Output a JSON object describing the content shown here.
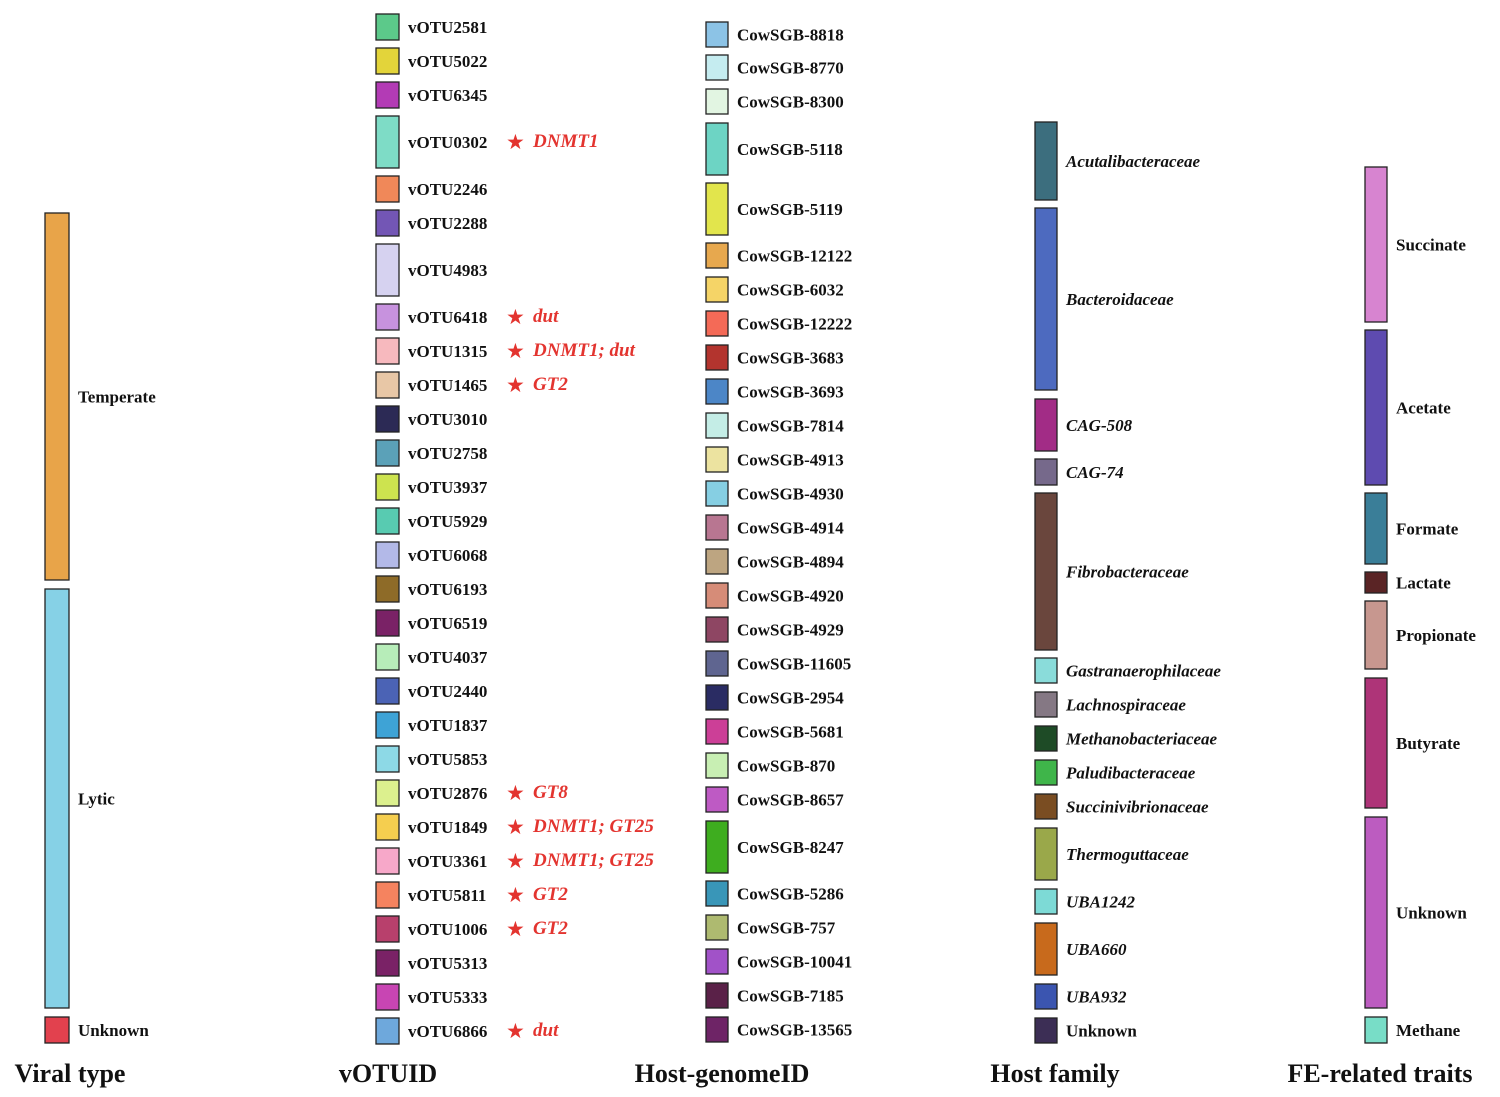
{
  "columns": [
    "Viral type",
    "vOTUID",
    "Host-genomeID",
    "Host family",
    "FE-related traits"
  ],
  "nodes": {
    "viral_type": [
      {
        "id": "Temperate",
        "color": "#E8A449"
      },
      {
        "id": "Lytic",
        "color": "#86D1E6"
      },
      {
        "id": "Unknown",
        "color": "#E2414E"
      }
    ],
    "votu": [
      {
        "id": "vOTU2581",
        "color": "#5CC98A"
      },
      {
        "id": "vOTU5022",
        "color": "#E3D43A"
      },
      {
        "id": "vOTU6345",
        "color": "#B33BB5"
      },
      {
        "id": "vOTU0302",
        "color": "#7EDCC6",
        "genes": "DNMT1"
      },
      {
        "id": "vOTU2246",
        "color": "#F08859"
      },
      {
        "id": "vOTU2288",
        "color": "#7356B5"
      },
      {
        "id": "vOTU4983",
        "color": "#D6D2F0"
      },
      {
        "id": "vOTU6418",
        "color": "#C792DE",
        "genes": "dut"
      },
      {
        "id": "vOTU1315",
        "color": "#F7B9BE",
        "genes": "DNMT1; dut"
      },
      {
        "id": "vOTU1465",
        "color": "#E8C7A6",
        "genes": "GT2"
      },
      {
        "id": "vOTU3010",
        "color": "#2C2A55"
      },
      {
        "id": "vOTU2758",
        "color": "#5BA1B8"
      },
      {
        "id": "vOTU3937",
        "color": "#CDE34F"
      },
      {
        "id": "vOTU5929",
        "color": "#58CBB1"
      },
      {
        "id": "vOTU6068",
        "color": "#B3B9E8"
      },
      {
        "id": "vOTU6193",
        "color": "#8E6B28"
      },
      {
        "id": "vOTU6519",
        "color": "#7A2266"
      },
      {
        "id": "vOTU4037",
        "color": "#B7EDB9"
      },
      {
        "id": "vOTU2440",
        "color": "#4B63B5"
      },
      {
        "id": "vOTU1837",
        "color": "#3EA3D6"
      },
      {
        "id": "vOTU5853",
        "color": "#8DD9E6"
      },
      {
        "id": "vOTU2876",
        "color": "#DCF08E",
        "genes": "GT8"
      },
      {
        "id": "vOTU1849",
        "color": "#F5CE4F",
        "genes": "DNMT1; GT25"
      },
      {
        "id": "vOTU3361",
        "color": "#F7A8C9",
        "genes": "DNMT1; GT25"
      },
      {
        "id": "vOTU5811",
        "color": "#F5835F",
        "genes": "GT2"
      },
      {
        "id": "vOTU1006",
        "color": "#B8406C",
        "genes": "GT2"
      },
      {
        "id": "vOTU5313",
        "color": "#7A2266"
      },
      {
        "id": "vOTU5333",
        "color": "#C845B3"
      },
      {
        "id": "vOTU6866",
        "color": "#6EA8DC",
        "genes": "dut"
      }
    ],
    "host_genome": [
      {
        "id": "CowSGB-8818",
        "color": "#8CC3E6"
      },
      {
        "id": "CowSGB-8770",
        "color": "#C5ECF0"
      },
      {
        "id": "CowSGB-8300",
        "color": "#E2F5E2"
      },
      {
        "id": "CowSGB-5118",
        "color": "#6DD4C4"
      },
      {
        "id": "CowSGB-5119",
        "color": "#E2E54C"
      },
      {
        "id": "CowSGB-12122",
        "color": "#E7A84E"
      },
      {
        "id": "CowSGB-6032",
        "color": "#F5D467"
      },
      {
        "id": "CowSGB-12222",
        "color": "#F46A57"
      },
      {
        "id": "CowSGB-3683",
        "color": "#B3342E"
      },
      {
        "id": "CowSGB-3693",
        "color": "#4C86C7"
      },
      {
        "id": "CowSGB-7814",
        "color": "#C4EDE6"
      },
      {
        "id": "CowSGB-4913",
        "color": "#ECE3A0"
      },
      {
        "id": "CowSGB-4930",
        "color": "#86CFE3"
      },
      {
        "id": "CowSGB-4914",
        "color": "#B87691"
      },
      {
        "id": "CowSGB-4894",
        "color": "#BDA581"
      },
      {
        "id": "CowSGB-4920",
        "color": "#D68C78"
      },
      {
        "id": "CowSGB-4929",
        "color": "#8E4663"
      },
      {
        "id": "CowSGB-11605",
        "color": "#5F6590"
      },
      {
        "id": "CowSGB-2954",
        "color": "#2A2C63"
      },
      {
        "id": "CowSGB-5681",
        "color": "#CC3F97"
      },
      {
        "id": "CowSGB-870",
        "color": "#C8EFB3"
      },
      {
        "id": "CowSGB-8657",
        "color": "#BE5AC4"
      },
      {
        "id": "CowSGB-8247",
        "color": "#3EAD1F"
      },
      {
        "id": "CowSGB-5286",
        "color": "#3996B8"
      },
      {
        "id": "CowSGB-757",
        "color": "#AEBA70"
      },
      {
        "id": "CowSGB-10041",
        "color": "#A152C8"
      },
      {
        "id": "CowSGB-7185",
        "color": "#5A2148"
      },
      {
        "id": "CowSGB-13565",
        "color": "#6E2466"
      }
    ],
    "host_family": [
      {
        "id": "Acutalibacteraceae",
        "color": "#3C6E7E",
        "italic": true
      },
      {
        "id": "Bacteroidaceae",
        "color": "#4D6ABF",
        "italic": true
      },
      {
        "id": "CAG-508",
        "color": "#A22C86",
        "italic": true
      },
      {
        "id": "CAG-74",
        "color": "#76698B",
        "italic": true
      },
      {
        "id": "Fibrobacteraceae",
        "color": "#6A463D",
        "italic": true
      },
      {
        "id": "Gastranaerophilaceae",
        "color": "#8ADCDA",
        "italic": true
      },
      {
        "id": "Lachnospiraceae",
        "color": "#857884",
        "italic": true
      },
      {
        "id": "Methanobacteriaceae",
        "color": "#1E4B26",
        "italic": true
      },
      {
        "id": "Paludibacteraceae",
        "color": "#3FB54A",
        "italic": true
      },
      {
        "id": "Succinivibrionaceae",
        "color": "#7A4D22",
        "italic": true
      },
      {
        "id": "Thermoguttaceae",
        "color": "#9AA84A",
        "italic": true
      },
      {
        "id": "UBA1242",
        "color": "#7DDAD6",
        "italic": true
      },
      {
        "id": "UBA660",
        "color": "#C86A1C",
        "italic": true
      },
      {
        "id": "UBA932",
        "color": "#3B55B0",
        "italic": true
      },
      {
        "id": "Unknown",
        "color": "#3C2E55",
        "italic": false
      }
    ],
    "traits": [
      {
        "id": "Succinate",
        "color": "#D784D0"
      },
      {
        "id": "Acetate",
        "color": "#5E4BB0"
      },
      {
        "id": "Formate",
        "color": "#3A7E98"
      },
      {
        "id": "Lactate",
        "color": "#5A2425"
      },
      {
        "id": "Propionate",
        "color": "#C7978F"
      },
      {
        "id": "Butyrate",
        "color": "#AE3478"
      },
      {
        "id": "Unknown",
        "color": "#BC5CC0"
      },
      {
        "id": "Methane",
        "color": "#78DDC7"
      }
    ]
  },
  "links": {
    "viral_type_to_votu": [
      [
        "Temperate",
        "vOTU5022"
      ],
      [
        "Temperate",
        "vOTU6345"
      ],
      [
        "Temperate",
        "vOTU2246"
      ],
      [
        "Temperate",
        "vOTU2288"
      ],
      [
        "Temperate",
        "vOTU4983"
      ],
      [
        "Temperate",
        "vOTU6418"
      ],
      [
        "Temperate",
        "vOTU1315"
      ],
      [
        "Temperate",
        "vOTU1465"
      ],
      [
        "Temperate",
        "vOTU3010"
      ],
      [
        "Temperate",
        "vOTU2758"
      ],
      [
        "Temperate",
        "vOTU5929"
      ],
      [
        "Temperate",
        "vOTU6193"
      ],
      [
        "Temperate",
        "vOTU1837"
      ],
      [
        "Temperate",
        "vOTU1849"
      ],
      [
        "Temperate",
        "vOTU3361"
      ],
      [
        "Lytic",
        "vOTU2581"
      ],
      [
        "Lytic",
        "vOTU0302"
      ],
      [
        "Lytic",
        "vOTU3937"
      ],
      [
        "Lytic",
        "vOTU6068"
      ],
      [
        "Lytic",
        "vOTU6519"
      ],
      [
        "Lytic",
        "vOTU4037"
      ],
      [
        "Lytic",
        "vOTU2440"
      ],
      [
        "Lytic",
        "vOTU5853"
      ],
      [
        "Lytic",
        "vOTU2876"
      ],
      [
        "Lytic",
        "vOTU5811"
      ],
      [
        "Lytic",
        "vOTU1006"
      ],
      [
        "Lytic",
        "vOTU5333"
      ],
      [
        "Lytic",
        "vOTU6866"
      ],
      [
        "Unknown",
        "vOTU5313"
      ]
    ],
    "votu_to_host": [
      [
        "vOTU2581",
        "CowSGB-8818"
      ],
      [
        "vOTU5022",
        "CowSGB-8770"
      ],
      [
        "vOTU6345",
        "CowSGB-8300"
      ],
      [
        "vOTU0302",
        "CowSGB-5118"
      ],
      [
        "vOTU2246",
        "CowSGB-12122"
      ],
      [
        "vOTU2288",
        "CowSGB-6032"
      ],
      [
        "vOTU4983",
        "CowSGB-5119"
      ],
      [
        "vOTU6418",
        "CowSGB-12222"
      ],
      [
        "vOTU1315",
        "CowSGB-3683"
      ],
      [
        "vOTU1465",
        "CowSGB-3693"
      ],
      [
        "vOTU3010",
        "CowSGB-7814"
      ],
      [
        "vOTU2758",
        "CowSGB-4930"
      ],
      [
        "vOTU3937",
        "CowSGB-4913"
      ],
      [
        "vOTU5929",
        "CowSGB-5118"
      ],
      [
        "vOTU6068",
        "CowSGB-5119"
      ],
      [
        "vOTU6193",
        "CowSGB-4920"
      ],
      [
        "vOTU6519",
        "CowSGB-4929"
      ],
      [
        "vOTU4037",
        "CowSGB-870"
      ],
      [
        "vOTU2440",
        "CowSGB-2954"
      ],
      [
        "vOTU1837",
        "CowSGB-5286"
      ],
      [
        "vOTU5853",
        "CowSGB-11605"
      ],
      [
        "vOTU2876",
        "CowSGB-8657"
      ],
      [
        "vOTU1849",
        "CowSGB-8247"
      ],
      [
        "vOTU3361",
        "CowSGB-8247"
      ],
      [
        "vOTU5811",
        "CowSGB-5681"
      ],
      [
        "vOTU1006",
        "CowSGB-757"
      ],
      [
        "vOTU5313",
        "CowSGB-10041"
      ],
      [
        "vOTU5333",
        "CowSGB-7185"
      ],
      [
        "vOTU6866",
        "CowSGB-13565"
      ],
      [
        "vOTU2440",
        "CowSGB-4914"
      ],
      [
        "vOTU6193",
        "CowSGB-4894"
      ]
    ],
    "host_to_family": [
      [
        "CowSGB-8818",
        "Acutalibacteraceae"
      ],
      [
        "CowSGB-8770",
        "Acutalibacteraceae"
      ],
      [
        "CowSGB-8300",
        "Bacteroidaceae"
      ],
      [
        "CowSGB-5118",
        "Bacteroidaceae"
      ],
      [
        "CowSGB-5119",
        "Bacteroidaceae"
      ],
      [
        "CowSGB-12122",
        "Bacteroidaceae"
      ],
      [
        "CowSGB-6032",
        "Bacteroidaceae"
      ],
      [
        "CowSGB-12222",
        "CAG-508"
      ],
      [
        "CowSGB-3683",
        "CAG-508"
      ],
      [
        "CowSGB-3693",
        "CAG-74"
      ],
      [
        "CowSGB-7814",
        "Fibrobacteraceae"
      ],
      [
        "CowSGB-4913",
        "Fibrobacteraceae"
      ],
      [
        "CowSGB-4930",
        "Fibrobacteraceae"
      ],
      [
        "CowSGB-4914",
        "Fibrobacteraceae"
      ],
      [
        "CowSGB-4894",
        "Fibrobacteraceae"
      ],
      [
        "CowSGB-4920",
        "Fibrobacteraceae"
      ],
      [
        "CowSGB-4929",
        "Fibrobacteraceae"
      ],
      [
        "CowSGB-11605",
        "Gastranaerophilaceae"
      ],
      [
        "CowSGB-2954",
        "Lachnospiraceae"
      ],
      [
        "CowSGB-5681",
        "Methanobacteriaceae"
      ],
      [
        "CowSGB-870",
        "Paludibacteraceae"
      ],
      [
        "CowSGB-8657",
        "Succinivibrionaceae"
      ],
      [
        "CowSGB-8247",
        "Thermoguttaceae"
      ],
      [
        "CowSGB-5286",
        "UBA1242"
      ],
      [
        "CowSGB-757",
        "UBA660"
      ],
      [
        "CowSGB-10041",
        "UBA660"
      ],
      [
        "CowSGB-7185",
        "UBA932"
      ],
      [
        "CowSGB-13565",
        "Unknown"
      ]
    ],
    "family_to_trait": [
      [
        "Acutalibacteraceae",
        "Succinate"
      ],
      [
        "Acutalibacteraceae",
        "Acetate"
      ],
      [
        "Acutalibacteraceae",
        "Formate"
      ],
      [
        "Acutalibacteraceae",
        "Lactate"
      ],
      [
        "Bacteroidaceae",
        "Succinate"
      ],
      [
        "Bacteroidaceae",
        "Acetate"
      ],
      [
        "CAG-508",
        "Acetate"
      ],
      [
        "CAG-508",
        "Butyrate"
      ],
      [
        "CAG-74",
        "Unknown"
      ],
      [
        "Fibrobacteraceae",
        "Succinate"
      ],
      [
        "Fibrobacteraceae",
        "Formate"
      ],
      [
        "Fibrobacteraceae",
        "Propionate"
      ],
      [
        "Gastranaerophilaceae",
        "Butyrate"
      ],
      [
        "Lachnospiraceae",
        "Butyrate"
      ],
      [
        "Methanobacteriaceae",
        "Methane"
      ],
      [
        "Paludibacteraceae",
        "Unknown"
      ],
      [
        "Succinivibrionaceae",
        "Unknown"
      ],
      [
        "Thermoguttaceae",
        "Unknown"
      ],
      [
        "UBA1242",
        "Acetate"
      ],
      [
        "UBA660",
        "Butyrate"
      ],
      [
        "UBA660",
        "Propionate"
      ],
      [
        "UBA932",
        "Succinate"
      ],
      [
        "Unknown",
        "Unknown"
      ]
    ]
  }
}
